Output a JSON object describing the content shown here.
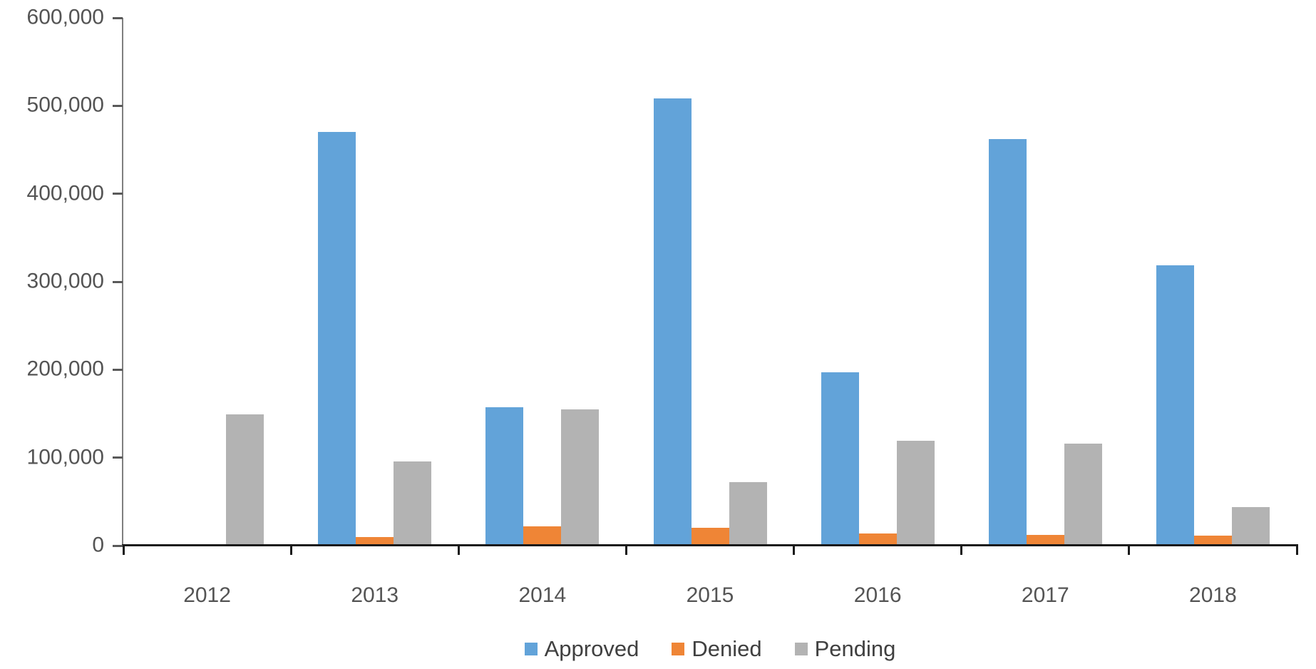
{
  "chart_data": {
    "type": "bar",
    "title": "",
    "xlabel": "",
    "ylabel": "",
    "categories": [
      "2012",
      "2013",
      "2014",
      "2015",
      "2016",
      "2017",
      "2018"
    ],
    "series": [
      {
        "name": "Approved",
        "color": "#62A3D9",
        "values": [
          2000,
          470000,
          157000,
          508000,
          197000,
          462000,
          319000
        ]
      },
      {
        "name": "Denied",
        "color": "#EF8536",
        "values": [
          0,
          10000,
          22000,
          20000,
          14000,
          12000,
          11000
        ]
      },
      {
        "name": "Pending",
        "color": "#B3B3B3",
        "values": [
          149000,
          96000,
          155000,
          72000,
          119000,
          116000,
          44000
        ]
      }
    ],
    "ylim": [
      0,
      600000
    ],
    "ytick_interval": 100000,
    "ytick_labels": [
      "0",
      "100,000",
      "200,000",
      "300,000",
      "400,000",
      "500,000",
      "600,000"
    ],
    "grid": false,
    "legend_position": "bottom-center"
  },
  "colors": {
    "y_axis_line": "#7f7f7f",
    "x_axis_line": "#1a1a1a",
    "axis_label_text": "#545454",
    "legend_text": "#404040",
    "background": "#ffffff"
  }
}
